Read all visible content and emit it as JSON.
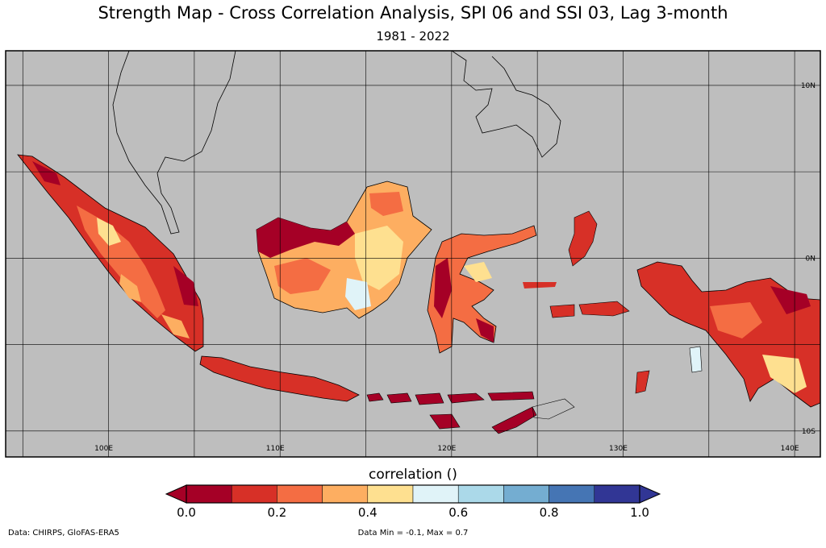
{
  "title": "Strength Map - Cross Correlation Analysis, SPI 06 and SSI 03, Lag 3-month",
  "subtitle": "1981 - 2022",
  "map": {
    "background_color": "#bebebe",
    "lon_range": [
      94,
      141.5
    ],
    "lat_range": [
      -11.5,
      12
    ],
    "lon_ticks": [
      {
        "value": 100,
        "label": "100E"
      },
      {
        "value": 110,
        "label": "110E"
      },
      {
        "value": 120,
        "label": "120E"
      },
      {
        "value": 130,
        "label": "130E"
      },
      {
        "value": 140,
        "label": "140E"
      }
    ],
    "lat_ticks": [
      {
        "value": 10,
        "label": "10N"
      },
      {
        "value": 0,
        "label": "0N"
      },
      {
        "value": -10,
        "label": "10S"
      }
    ],
    "gridlines": true
  },
  "colorbar": {
    "label": "correlation ()",
    "colors": [
      "#a50026",
      "#d73027",
      "#f46d43",
      "#fdae61",
      "#fee090",
      "#e0f3f8",
      "#abd9e9",
      "#74add1",
      "#4575b4",
      "#313695"
    ],
    "tick_labels": [
      "0.0",
      "0.2",
      "0.4",
      "0.6",
      "0.8",
      "1.0"
    ],
    "min": 0.0,
    "max": 1.0
  },
  "footer": {
    "source": "Data: CHIRPS, GloFAS-ERA5",
    "range": "Data Min = -0.1, Max = 0.7"
  }
}
